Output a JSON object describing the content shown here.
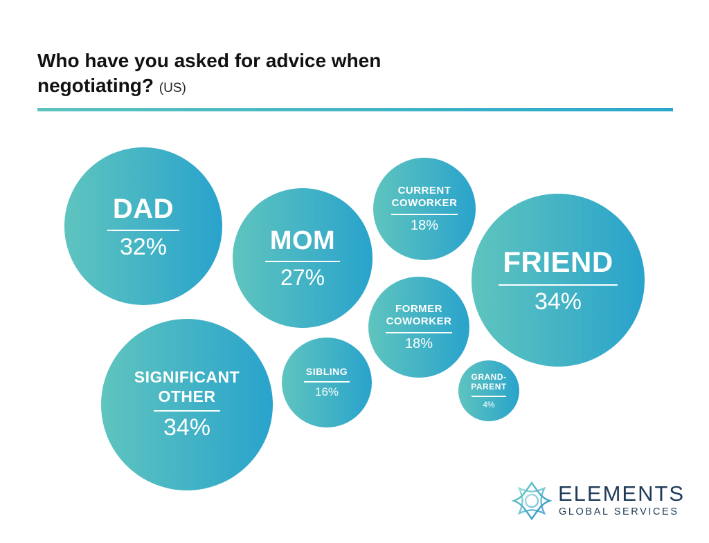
{
  "title": {
    "main": "Who have you asked for advice when negotiating?",
    "suffix": "(US)"
  },
  "chart_data": {
    "type": "bubble",
    "title": "Who have you asked for advice when negotiating? (US)",
    "unit": "%",
    "items": [
      {
        "label": "DAD",
        "value": 32,
        "display": "32%"
      },
      {
        "label": "MOM",
        "value": 27,
        "display": "27%"
      },
      {
        "label": "CURRENT\nCOWORKER",
        "value": 18,
        "display": "18%"
      },
      {
        "label": "FRIEND",
        "value": 34,
        "display": "34%"
      },
      {
        "label": "FORMER\nCOWORKER",
        "value": 18,
        "display": "18%"
      },
      {
        "label": "SIGNIFICANT\nOTHER",
        "value": 34,
        "display": "34%"
      },
      {
        "label": "SIBLING",
        "value": 16,
        "display": "16%"
      },
      {
        "label": "GRAND-\nPARENT",
        "value": 4,
        "display": "4%"
      }
    ],
    "colors": {
      "start": "#5fc4be",
      "end": "#29a3cc"
    }
  },
  "logo": {
    "name": "ELEMENTS",
    "tagline": "GLOBAL SERVICES",
    "icon": "elements-star-logo-icon",
    "color": "#1f3b57"
  }
}
